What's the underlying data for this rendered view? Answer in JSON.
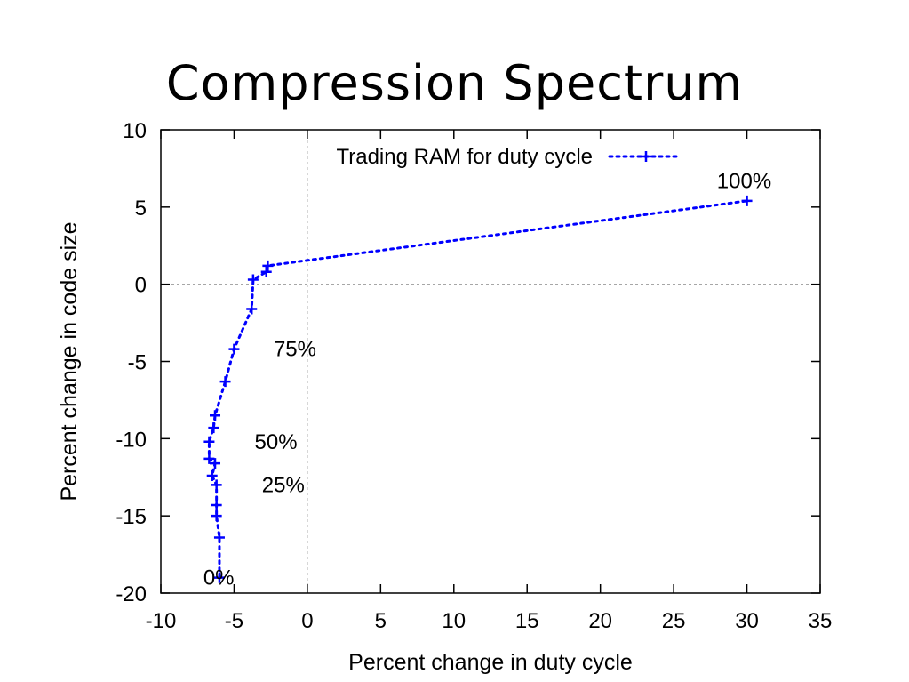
{
  "title": "Compression Spectrum",
  "chart_data": {
    "type": "line",
    "xlabel": "Percent change in duty cycle",
    "ylabel": "Percent change in code size",
    "xlim": [
      -10,
      35
    ],
    "ylim": [
      -20,
      10
    ],
    "xticks": [
      -10,
      -5,
      0,
      5,
      10,
      15,
      20,
      25,
      30,
      35
    ],
    "yticks": [
      -20,
      -15,
      -10,
      -5,
      0,
      5,
      10
    ],
    "grid": false,
    "zero_lines": true,
    "legend_position": "top-center",
    "series": [
      {
        "name": "Trading RAM for duty cycle",
        "color": "#0000ff",
        "marker": "plus",
        "line_style": "dotted",
        "points": [
          {
            "x": -6.0,
            "y": -19.0
          },
          {
            "x": -6.0,
            "y": -16.4
          },
          {
            "x": -6.2,
            "y": -15.0
          },
          {
            "x": -6.2,
            "y": -14.3
          },
          {
            "x": -6.2,
            "y": -13.0
          },
          {
            "x": -6.5,
            "y": -12.4
          },
          {
            "x": -6.3,
            "y": -11.6
          },
          {
            "x": -6.7,
            "y": -11.3
          },
          {
            "x": -6.7,
            "y": -10.2
          },
          {
            "x": -6.4,
            "y": -9.3
          },
          {
            "x": -6.3,
            "y": -8.5
          },
          {
            "x": -5.6,
            "y": -6.3
          },
          {
            "x": -5.0,
            "y": -4.2
          },
          {
            "x": -3.8,
            "y": -1.6
          },
          {
            "x": -3.7,
            "y": 0.3
          },
          {
            "x": -2.8,
            "y": 0.8
          },
          {
            "x": -2.7,
            "y": 1.2
          },
          {
            "x": 30.0,
            "y": 5.4
          }
        ]
      }
    ],
    "annotations": [
      {
        "text": "100%",
        "x": 30.3,
        "y": 6.7
      },
      {
        "text": "75%",
        "x": -2.3,
        "y": -4.2
      },
      {
        "text": "50%",
        "x": -3.6,
        "y": -10.2
      },
      {
        "text": "25%",
        "x": -3.1,
        "y": -13.0
      },
      {
        "text": "0%",
        "x": -7.1,
        "y": -19.0
      }
    ]
  }
}
